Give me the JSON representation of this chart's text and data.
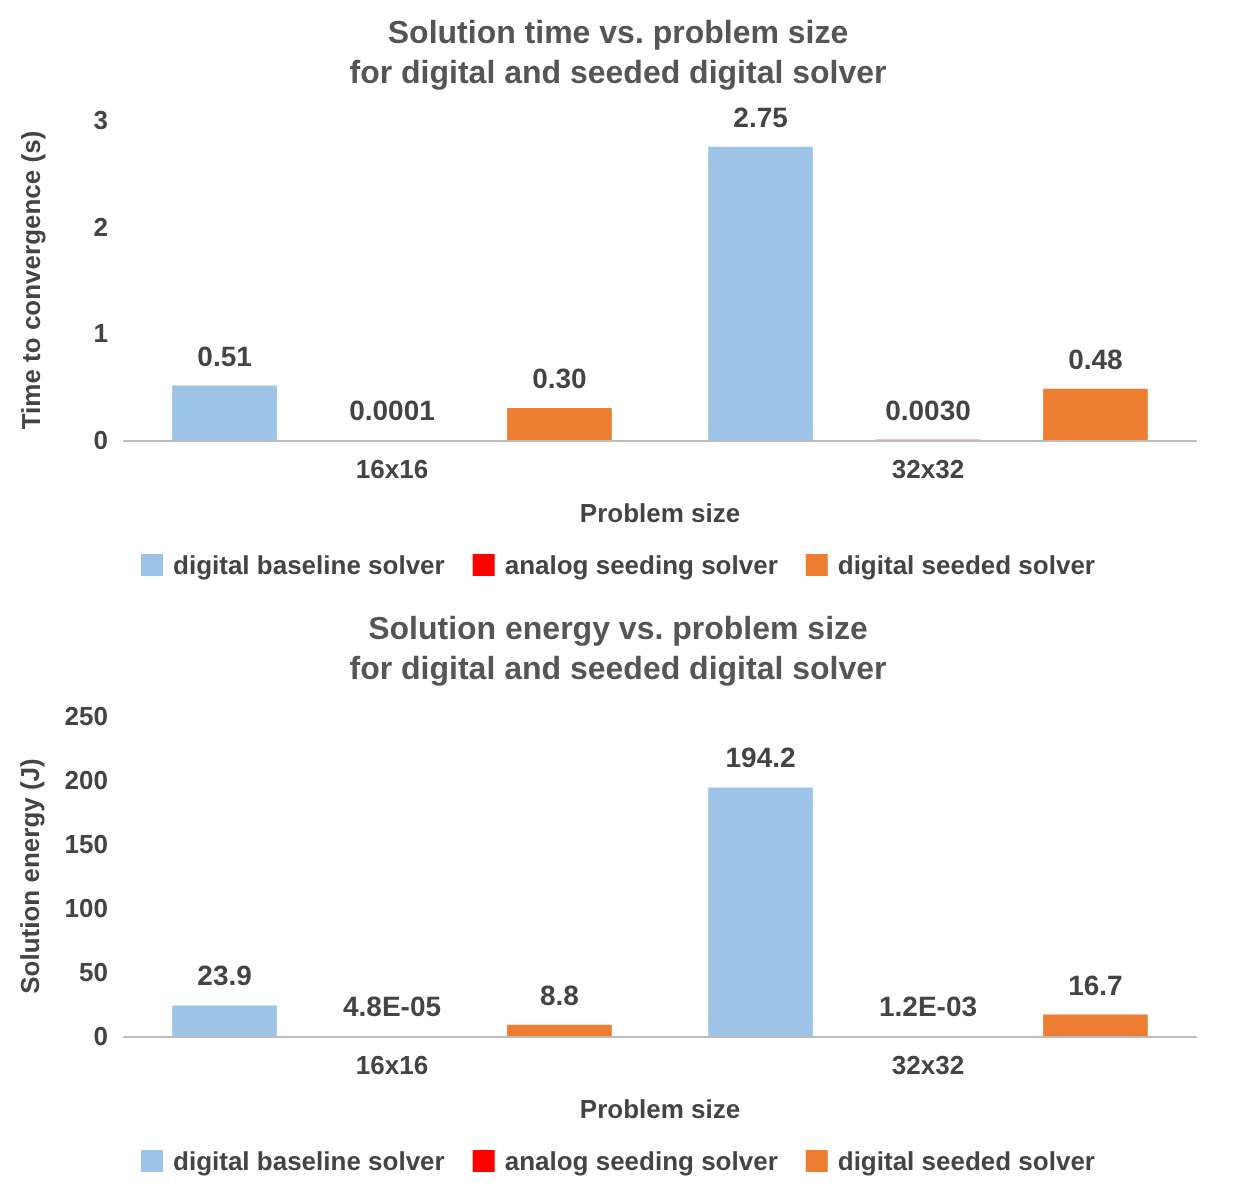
{
  "chart_data": [
    {
      "type": "bar",
      "title": "Solution time vs. problem size\nfor digital and seeded digital solver",
      "xlabel": "Problem size",
      "ylabel": "Time to convergence (s)",
      "categories": [
        "16x16",
        "32x32"
      ],
      "series": [
        {
          "name": "digital baseline solver",
          "color": "#9dc3e6",
          "values": [
            0.51,
            2.75
          ],
          "value_labels": [
            "0.51",
            "2.75"
          ]
        },
        {
          "name": "analog seeding solver",
          "color": "#ff0000",
          "values": [
            0.0001,
            0.003
          ],
          "value_labels": [
            "0.0001",
            "0.0030"
          ]
        },
        {
          "name": "digital seeded solver",
          "color": "#ed7d31",
          "values": [
            0.3,
            0.48
          ],
          "value_labels": [
            "0.30",
            "0.48"
          ]
        }
      ],
      "ylim": [
        0,
        3
      ],
      "yticks": [
        0,
        1,
        2,
        3
      ],
      "grid": false,
      "legend": "bottom"
    },
    {
      "type": "bar",
      "title": "Solution energy vs. problem size\nfor digital and seeded digital solver",
      "xlabel": "Problem size",
      "ylabel": "Solution energy (J)",
      "categories": [
        "16x16",
        "32x32"
      ],
      "series": [
        {
          "name": "digital baseline solver",
          "color": "#9dc3e6",
          "values": [
            23.9,
            194.2
          ],
          "value_labels": [
            "23.9",
            "194.2"
          ]
        },
        {
          "name": "analog seeding solver",
          "color": "#ff0000",
          "values": [
            4.8e-05,
            0.0012
          ],
          "value_labels": [
            "4.8E-05",
            "1.2E-03"
          ]
        },
        {
          "name": "digital seeded solver",
          "color": "#ed7d31",
          "values": [
            8.8,
            16.7
          ],
          "value_labels": [
            "8.8",
            "16.7"
          ]
        }
      ],
      "ylim": [
        0,
        250
      ],
      "yticks": [
        0,
        50,
        100,
        150,
        200,
        250
      ],
      "grid": false,
      "legend": "bottom"
    }
  ]
}
